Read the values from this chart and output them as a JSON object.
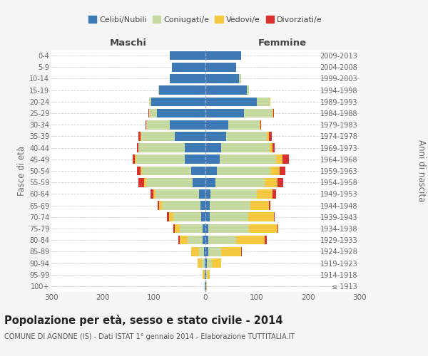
{
  "age_groups": [
    "100+",
    "95-99",
    "90-94",
    "85-89",
    "80-84",
    "75-79",
    "70-74",
    "65-69",
    "60-64",
    "55-59",
    "50-54",
    "45-49",
    "40-44",
    "35-39",
    "30-34",
    "25-29",
    "20-24",
    "15-19",
    "10-14",
    "5-9",
    "0-4"
  ],
  "birth_years": [
    "≤ 1913",
    "1914-1918",
    "1919-1923",
    "1924-1928",
    "1929-1933",
    "1934-1938",
    "1939-1943",
    "1944-1948",
    "1949-1953",
    "1954-1958",
    "1959-1963",
    "1964-1968",
    "1969-1973",
    "1974-1978",
    "1979-1983",
    "1984-1988",
    "1989-1993",
    "1994-1998",
    "1999-2003",
    "2004-2008",
    "2009-2013"
  ],
  "colors": {
    "celibi": "#3d7ab5",
    "coniugati": "#c5d9a0",
    "vedovi": "#f5c842",
    "divorziati": "#d93030"
  },
  "male": {
    "celibi": [
      1,
      1,
      2,
      3,
      5,
      5,
      8,
      10,
      12,
      25,
      28,
      40,
      40,
      60,
      70,
      95,
      105,
      90,
      70,
      65,
      70
    ],
    "coniugati": [
      0,
      1,
      5,
      10,
      30,
      45,
      55,
      75,
      85,
      90,
      95,
      95,
      90,
      65,
      45,
      15,
      5,
      2,
      0,
      0,
      0
    ],
    "vedovi": [
      1,
      3,
      8,
      15,
      15,
      10,
      8,
      5,
      5,
      5,
      3,
      2,
      1,
      1,
      0,
      0,
      0,
      0,
      0,
      0,
      0
    ],
    "divorziati": [
      0,
      0,
      0,
      0,
      3,
      2,
      4,
      3,
      5,
      10,
      8,
      5,
      3,
      4,
      2,
      1,
      0,
      0,
      0,
      0,
      0
    ]
  },
  "female": {
    "nubili": [
      1,
      1,
      3,
      5,
      5,
      5,
      8,
      8,
      10,
      20,
      22,
      28,
      30,
      40,
      45,
      75,
      100,
      80,
      65,
      60,
      70
    ],
    "coniugate": [
      1,
      3,
      10,
      25,
      55,
      80,
      75,
      80,
      90,
      95,
      105,
      110,
      95,
      80,
      60,
      55,
      25,
      5,
      5,
      0,
      0
    ],
    "vedove": [
      1,
      5,
      18,
      40,
      55,
      55,
      50,
      35,
      30,
      25,
      18,
      12,
      5,
      4,
      2,
      2,
      1,
      0,
      0,
      0,
      0
    ],
    "divorziate": [
      0,
      0,
      0,
      1,
      5,
      2,
      2,
      3,
      8,
      12,
      10,
      12,
      5,
      5,
      2,
      2,
      0,
      0,
      0,
      0,
      0
    ]
  },
  "xlim": 300,
  "title": "Popolazione per età, sesso e stato civile - 2014",
  "subtitle": "COMUNE DI AGNONE (IS) - Dati ISTAT 1° gennaio 2014 - Elaborazione TUTTITALIA.IT",
  "ylabel_left": "Fasce di età",
  "ylabel_right": "Anni di nascita",
  "xlabel_male": "Maschi",
  "xlabel_female": "Femmine",
  "bg_color": "#f5f5f5",
  "bar_bg": "#ffffff",
  "grid_color": "#cccccc"
}
